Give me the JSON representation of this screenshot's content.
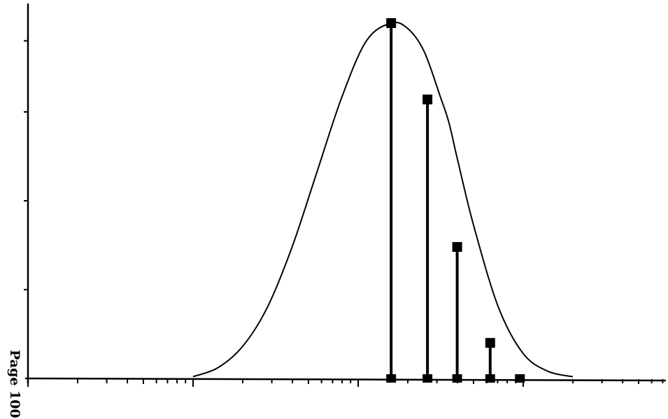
{
  "page_label": "Page 100",
  "chart_data": {
    "type": "line",
    "x_scale": "log",
    "x_decades": 4,
    "curve": {
      "x": [
        1.0,
        1.15,
        1.3,
        1.45,
        1.6,
        1.75,
        1.9,
        2.05,
        2.2,
        2.3,
        2.4,
        2.5,
        2.55,
        2.6,
        2.7,
        2.85,
        3.0,
        3.15,
        3.3
      ],
      "y": [
        0.005,
        0.03,
        0.09,
        0.2,
        0.37,
        0.58,
        0.79,
        0.95,
        1.0,
        0.985,
        0.92,
        0.79,
        0.72,
        0.62,
        0.43,
        0.2,
        0.07,
        0.02,
        0.005
      ]
    },
    "stems": {
      "x": [
        2.2,
        2.42,
        2.6,
        2.8,
        2.98
      ],
      "y": [
        1.0,
        0.785,
        0.37,
        0.1,
        0.0
      ]
    },
    "ylim": [
      0,
      1
    ],
    "colors": {
      "line": "#000000"
    }
  }
}
